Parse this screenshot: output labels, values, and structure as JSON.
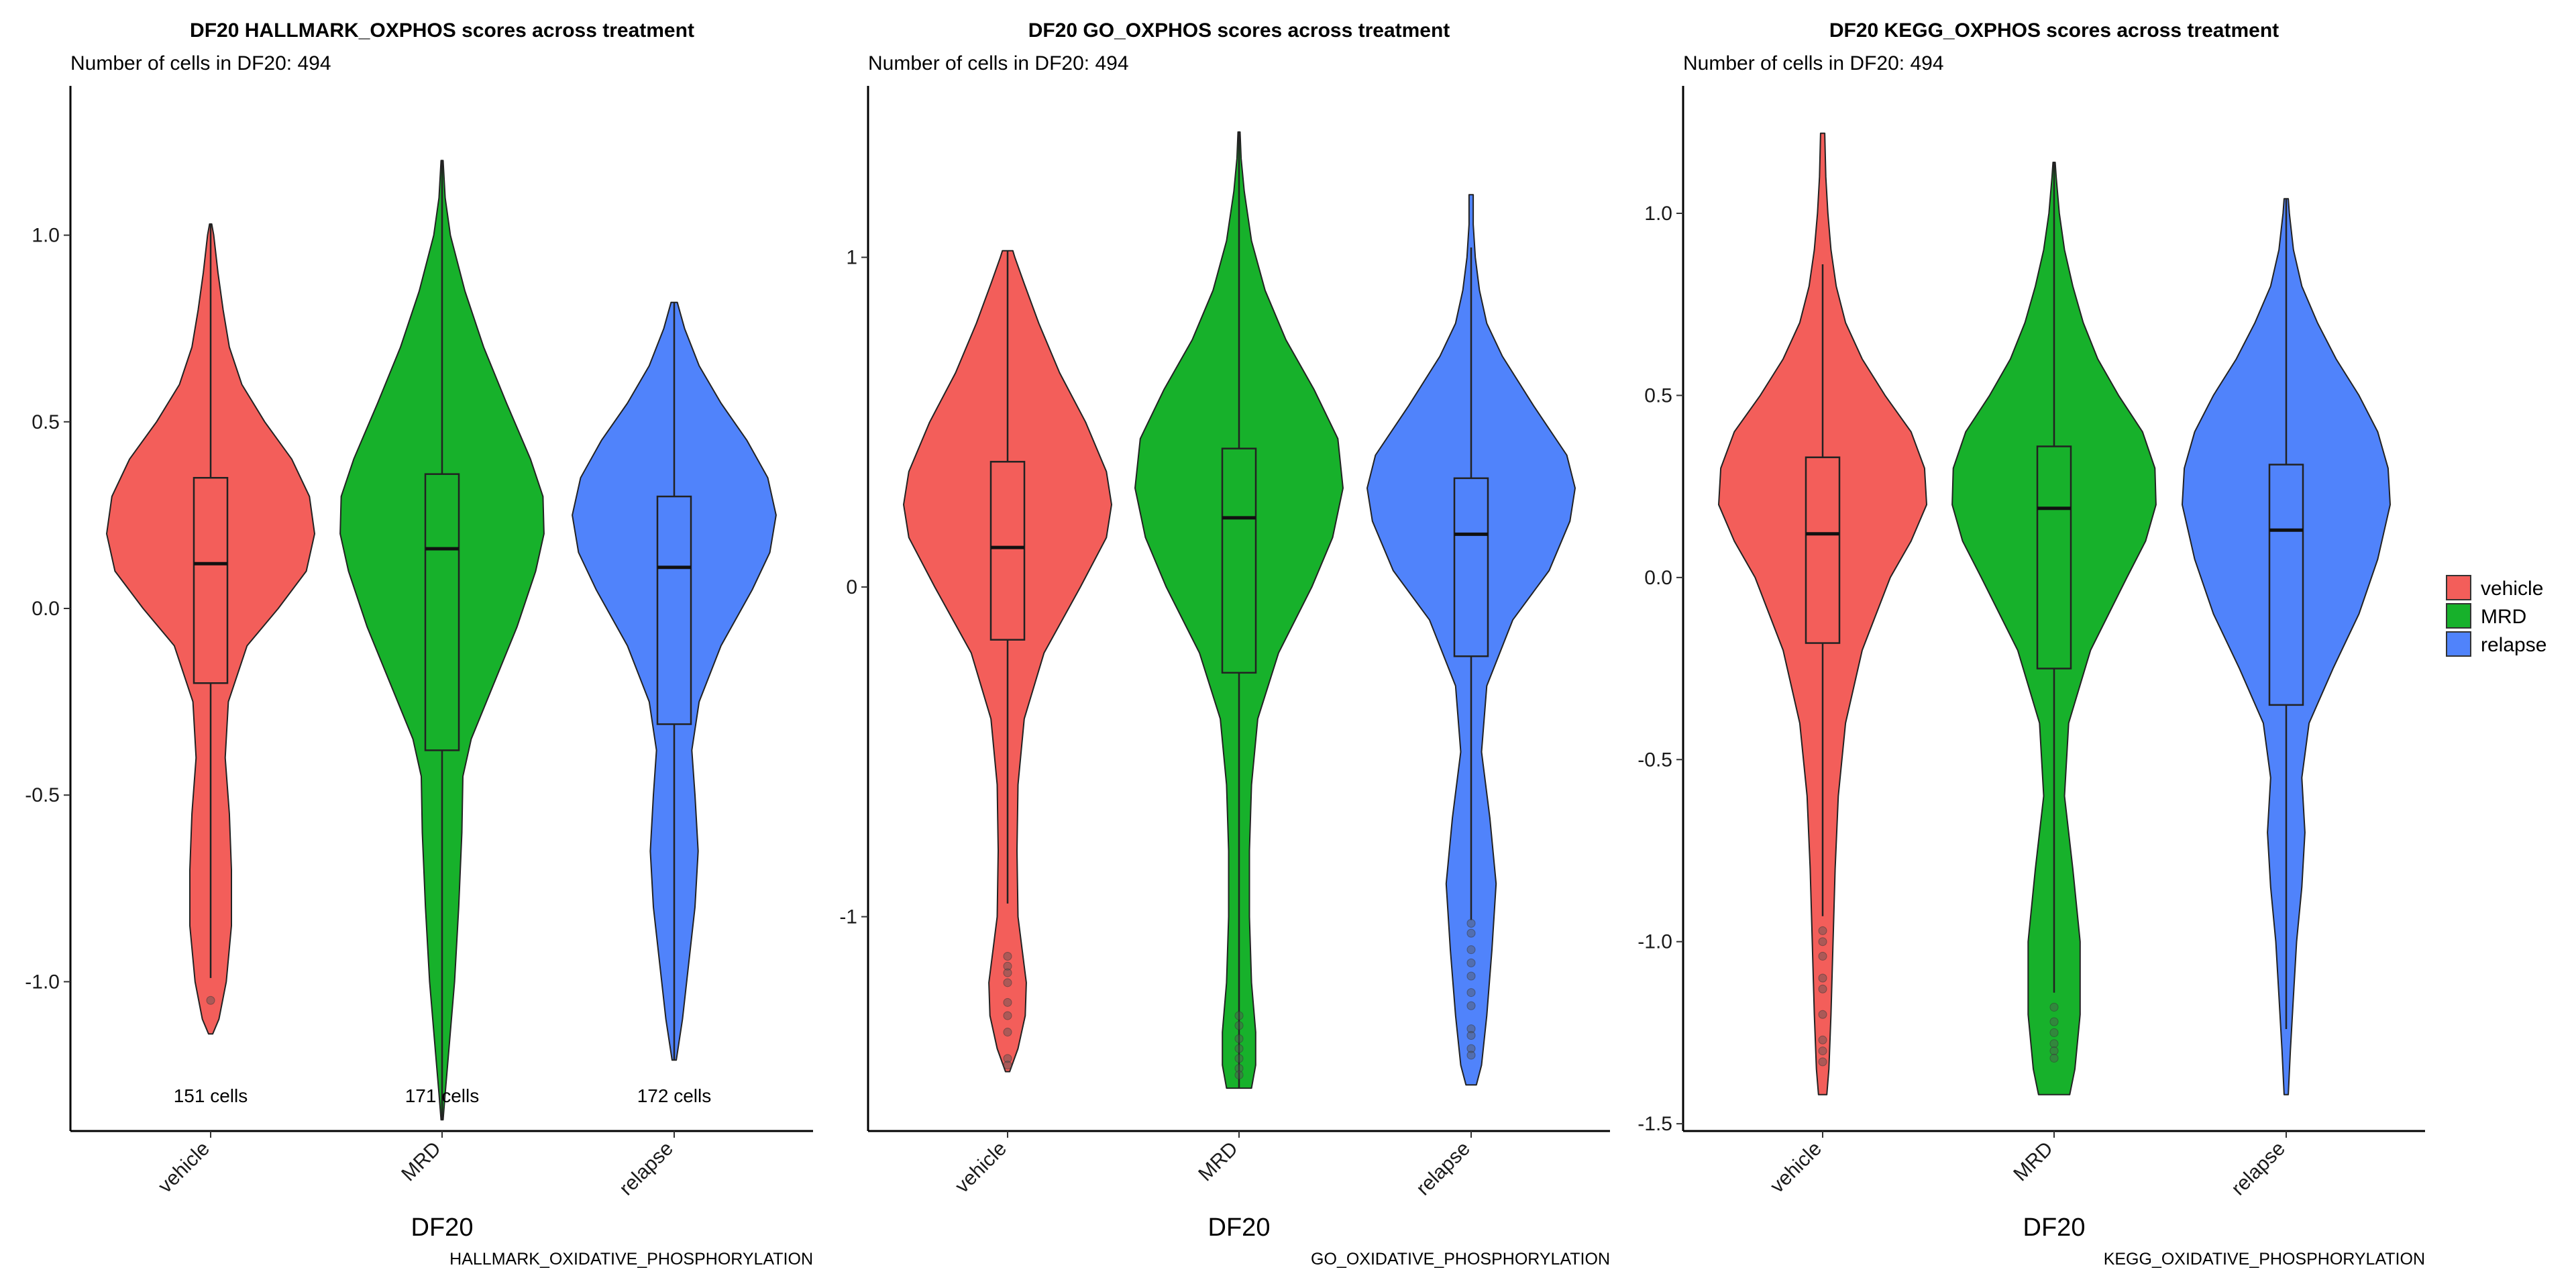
{
  "chart_data": [
    {
      "type": "violin",
      "title": "DF20 HALLMARK_OXPHOS scores across treatment",
      "subtitle": "Number of cells in DF20: 494",
      "xlabel": "DF20",
      "caption": "HALLMARK_OXIDATIVE_PHOSPHORYLATION",
      "ylim": [
        -1.4,
        1.4
      ],
      "yticks": [
        1.0,
        0.5,
        0.0,
        -0.5,
        -1.0
      ],
      "ytick_labels": [
        "1.0",
        "0.5",
        "0.0",
        "-0.5",
        "-1.0"
      ],
      "categories": [
        "vehicle",
        "MRD",
        "relapse"
      ],
      "count_labels": [
        "151 cells",
        "171 cells",
        "172 cells"
      ],
      "series": [
        {
          "name": "vehicle",
          "min": -1.14,
          "max": 1.03,
          "q1": -0.2,
          "median": 0.12,
          "q3": 0.35,
          "lw": -0.99,
          "uw": 1.03,
          "density": [
            [
              -1.14,
              0.02
            ],
            [
              -1.1,
              0.08
            ],
            [
              -1.0,
              0.15
            ],
            [
              -0.85,
              0.2
            ],
            [
              -0.7,
              0.2
            ],
            [
              -0.55,
              0.18
            ],
            [
              -0.4,
              0.14
            ],
            [
              -0.25,
              0.17
            ],
            [
              -0.1,
              0.35
            ],
            [
              0.0,
              0.65
            ],
            [
              0.1,
              0.92
            ],
            [
              0.2,
              1.0
            ],
            [
              0.3,
              0.95
            ],
            [
              0.4,
              0.78
            ],
            [
              0.5,
              0.52
            ],
            [
              0.6,
              0.3
            ],
            [
              0.7,
              0.18
            ],
            [
              0.8,
              0.12
            ],
            [
              0.9,
              0.07
            ],
            [
              1.0,
              0.03
            ],
            [
              1.03,
              0.01
            ]
          ],
          "outliers": [
            -1.05
          ]
        },
        {
          "name": "MRD",
          "min": -1.37,
          "max": 1.2,
          "q1": -0.38,
          "median": 0.16,
          "q3": 0.36,
          "lw": -1.37,
          "uw": 1.2,
          "density": [
            [
              -1.37,
              0.01
            ],
            [
              -1.3,
              0.03
            ],
            [
              -1.2,
              0.06
            ],
            [
              -1.0,
              0.12
            ],
            [
              -0.8,
              0.16
            ],
            [
              -0.6,
              0.19
            ],
            [
              -0.45,
              0.2
            ],
            [
              -0.35,
              0.28
            ],
            [
              -0.2,
              0.5
            ],
            [
              -0.05,
              0.72
            ],
            [
              0.1,
              0.9
            ],
            [
              0.2,
              0.98
            ],
            [
              0.3,
              0.97
            ],
            [
              0.4,
              0.85
            ],
            [
              0.55,
              0.62
            ],
            [
              0.7,
              0.4
            ],
            [
              0.85,
              0.22
            ],
            [
              1.0,
              0.08
            ],
            [
              1.1,
              0.03
            ],
            [
              1.2,
              0.01
            ]
          ],
          "outliers": []
        },
        {
          "name": "relapse",
          "min": -1.21,
          "max": 0.82,
          "q1": -0.31,
          "median": 0.11,
          "q3": 0.3,
          "lw": -1.21,
          "uw": 0.82,
          "density": [
            [
              -1.21,
              0.02
            ],
            [
              -1.1,
              0.08
            ],
            [
              -0.95,
              0.14
            ],
            [
              -0.8,
              0.2
            ],
            [
              -0.65,
              0.23
            ],
            [
              -0.5,
              0.2
            ],
            [
              -0.38,
              0.17
            ],
            [
              -0.25,
              0.24
            ],
            [
              -0.1,
              0.45
            ],
            [
              0.05,
              0.75
            ],
            [
              0.15,
              0.92
            ],
            [
              0.25,
              0.98
            ],
            [
              0.35,
              0.9
            ],
            [
              0.45,
              0.7
            ],
            [
              0.55,
              0.45
            ],
            [
              0.65,
              0.24
            ],
            [
              0.75,
              0.1
            ],
            [
              0.82,
              0.03
            ]
          ],
          "outliers": []
        }
      ]
    },
    {
      "type": "violin",
      "title": "DF20 GO_OXPHOS scores across treatment",
      "subtitle": "Number of cells in DF20: 494",
      "xlabel": "DF20",
      "caption": "GO_OXIDATIVE_PHOSPHORYLATION",
      "ylim": [
        -1.65,
        1.52
      ],
      "yticks": [
        1,
        0,
        -1
      ],
      "ytick_labels": [
        "1",
        "0",
        "-1"
      ],
      "categories": [
        "vehicle",
        "MRD",
        "relapse"
      ],
      "count_labels": [],
      "series": [
        {
          "name": "vehicle",
          "min": -1.47,
          "max": 1.02,
          "q1": -0.16,
          "median": 0.12,
          "q3": 0.38,
          "lw": -0.96,
          "uw": 1.02,
          "density": [
            [
              -1.47,
              0.02
            ],
            [
              -1.4,
              0.1
            ],
            [
              -1.3,
              0.17
            ],
            [
              -1.2,
              0.18
            ],
            [
              -1.1,
              0.14
            ],
            [
              -1.0,
              0.1
            ],
            [
              -0.8,
              0.09
            ],
            [
              -0.6,
              0.1
            ],
            [
              -0.4,
              0.16
            ],
            [
              -0.2,
              0.35
            ],
            [
              0.0,
              0.7
            ],
            [
              0.15,
              0.95
            ],
            [
              0.25,
              1.0
            ],
            [
              0.35,
              0.95
            ],
            [
              0.5,
              0.75
            ],
            [
              0.65,
              0.5
            ],
            [
              0.8,
              0.3
            ],
            [
              0.92,
              0.16
            ],
            [
              1.0,
              0.07
            ],
            [
              1.02,
              0.05
            ]
          ],
          "outliers": [
            -1.12,
            -1.15,
            -1.17,
            -1.2,
            -1.26,
            -1.3,
            -1.35,
            -1.43,
            -1.45
          ]
        },
        {
          "name": "MRD",
          "min": -1.52,
          "max": 1.38,
          "q1": -0.26,
          "median": 0.21,
          "q3": 0.42,
          "lw": -1.52,
          "uw": 1.38,
          "density": [
            [
              -1.52,
              0.12
            ],
            [
              -1.45,
              0.16
            ],
            [
              -1.35,
              0.16
            ],
            [
              -1.2,
              0.12
            ],
            [
              -1.0,
              0.1
            ],
            [
              -0.8,
              0.1
            ],
            [
              -0.6,
              0.12
            ],
            [
              -0.4,
              0.18
            ],
            [
              -0.2,
              0.38
            ],
            [
              0.0,
              0.7
            ],
            [
              0.15,
              0.9
            ],
            [
              0.3,
              1.0
            ],
            [
              0.45,
              0.95
            ],
            [
              0.6,
              0.72
            ],
            [
              0.75,
              0.45
            ],
            [
              0.9,
              0.25
            ],
            [
              1.05,
              0.12
            ],
            [
              1.2,
              0.05
            ],
            [
              1.3,
              0.02
            ],
            [
              1.38,
              0.01
            ]
          ],
          "outliers": [
            -1.3,
            -1.33,
            -1.37,
            -1.4,
            -1.43,
            -1.46,
            -1.48
          ]
        },
        {
          "name": "relapse",
          "min": -1.51,
          "max": 1.19,
          "q1": -0.21,
          "median": 0.16,
          "q3": 0.33,
          "lw": -1.01,
          "uw": 1.03,
          "density": [
            [
              -1.51,
              0.05
            ],
            [
              -1.45,
              0.1
            ],
            [
              -1.3,
              0.15
            ],
            [
              -1.1,
              0.2
            ],
            [
              -0.9,
              0.24
            ],
            [
              -0.7,
              0.18
            ],
            [
              -0.5,
              0.1
            ],
            [
              -0.3,
              0.15
            ],
            [
              -0.1,
              0.4
            ],
            [
              0.05,
              0.75
            ],
            [
              0.2,
              0.95
            ],
            [
              0.3,
              1.0
            ],
            [
              0.4,
              0.92
            ],
            [
              0.55,
              0.6
            ],
            [
              0.7,
              0.3
            ],
            [
              0.8,
              0.15
            ],
            [
              0.9,
              0.08
            ],
            [
              1.0,
              0.04
            ],
            [
              1.1,
              0.02
            ],
            [
              1.19,
              0.02
            ]
          ],
          "outliers": [
            -1.02,
            -1.05,
            -1.1,
            -1.14,
            -1.18,
            -1.23,
            -1.27,
            -1.34,
            -1.36,
            -1.4,
            -1.42
          ]
        }
      ]
    },
    {
      "type": "violin",
      "title": "DF20 KEGG_OXPHOS scores across treatment",
      "subtitle": "Number of cells in DF20: 494",
      "xlabel": "DF20",
      "caption": "KEGG_OXIDATIVE_PHOSPHORYLATION",
      "ylim": [
        -1.52,
        1.35
      ],
      "yticks": [
        1.0,
        0.5,
        0.0,
        -0.5,
        -1.0,
        -1.5
      ],
      "ytick_labels": [
        "1.0",
        "0.5",
        "0.0",
        "-0.5",
        "-1.0",
        "-1.5"
      ],
      "categories": [
        "vehicle",
        "MRD",
        "relapse"
      ],
      "count_labels": [],
      "series": [
        {
          "name": "vehicle",
          "min": -1.42,
          "max": 1.22,
          "q1": -0.18,
          "median": 0.12,
          "q3": 0.33,
          "lw": -0.93,
          "uw": 0.86,
          "density": [
            [
              -1.42,
              0.04
            ],
            [
              -1.35,
              0.06
            ],
            [
              -1.2,
              0.08
            ],
            [
              -1.0,
              0.1
            ],
            [
              -0.8,
              0.12
            ],
            [
              -0.6,
              0.15
            ],
            [
              -0.4,
              0.22
            ],
            [
              -0.2,
              0.38
            ],
            [
              0.0,
              0.65
            ],
            [
              0.1,
              0.85
            ],
            [
              0.2,
              1.0
            ],
            [
              0.3,
              0.98
            ],
            [
              0.4,
              0.85
            ],
            [
              0.5,
              0.6
            ],
            [
              0.6,
              0.38
            ],
            [
              0.7,
              0.22
            ],
            [
              0.8,
              0.13
            ],
            [
              0.9,
              0.08
            ],
            [
              1.0,
              0.05
            ],
            [
              1.1,
              0.03
            ],
            [
              1.22,
              0.02
            ]
          ],
          "outliers": [
            -0.97,
            -1.0,
            -1.04,
            -1.1,
            -1.13,
            -1.2,
            -1.27,
            -1.3,
            -1.33
          ]
        },
        {
          "name": "MRD",
          "min": -1.42,
          "max": 1.14,
          "q1": -0.25,
          "median": 0.19,
          "q3": 0.36,
          "lw": -1.14,
          "uw": 1.14,
          "density": [
            [
              -1.42,
              0.15
            ],
            [
              -1.35,
              0.2
            ],
            [
              -1.2,
              0.25
            ],
            [
              -1.0,
              0.25
            ],
            [
              -0.8,
              0.18
            ],
            [
              -0.6,
              0.1
            ],
            [
              -0.4,
              0.14
            ],
            [
              -0.2,
              0.35
            ],
            [
              0.0,
              0.7
            ],
            [
              0.1,
              0.88
            ],
            [
              0.2,
              0.98
            ],
            [
              0.3,
              0.97
            ],
            [
              0.4,
              0.85
            ],
            [
              0.5,
              0.62
            ],
            [
              0.6,
              0.42
            ],
            [
              0.7,
              0.28
            ],
            [
              0.8,
              0.18
            ],
            [
              0.9,
              0.1
            ],
            [
              1.0,
              0.05
            ],
            [
              1.1,
              0.02
            ],
            [
              1.14,
              0.01
            ]
          ],
          "outliers": [
            -1.18,
            -1.22,
            -1.25,
            -1.28,
            -1.3,
            -1.32
          ]
        },
        {
          "name": "relapse",
          "min": -1.42,
          "max": 1.04,
          "q1": -0.35,
          "median": 0.13,
          "q3": 0.31,
          "lw": -1.24,
          "uw": 1.04,
          "density": [
            [
              -1.42,
              0.02
            ],
            [
              -1.3,
              0.04
            ],
            [
              -1.15,
              0.07
            ],
            [
              -1.0,
              0.1
            ],
            [
              -0.85,
              0.15
            ],
            [
              -0.7,
              0.18
            ],
            [
              -0.55,
              0.15
            ],
            [
              -0.4,
              0.22
            ],
            [
              -0.25,
              0.45
            ],
            [
              -0.1,
              0.7
            ],
            [
              0.05,
              0.88
            ],
            [
              0.2,
              1.0
            ],
            [
              0.3,
              0.98
            ],
            [
              0.4,
              0.88
            ],
            [
              0.5,
              0.7
            ],
            [
              0.6,
              0.48
            ],
            [
              0.7,
              0.3
            ],
            [
              0.8,
              0.15
            ],
            [
              0.9,
              0.07
            ],
            [
              1.0,
              0.03
            ],
            [
              1.04,
              0.02
            ]
          ],
          "outliers": []
        }
      ]
    }
  ],
  "legend": {
    "items": [
      {
        "label": "vehicle",
        "color": "#F8766D"
      },
      {
        "label": "MRD",
        "color": "#00BA38"
      },
      {
        "label": "relapse",
        "color": "#619CFF"
      }
    ]
  },
  "colors": {
    "vehicle": "#F35E5A",
    "MRD": "#17B12B",
    "relapse": "#5083FB"
  }
}
